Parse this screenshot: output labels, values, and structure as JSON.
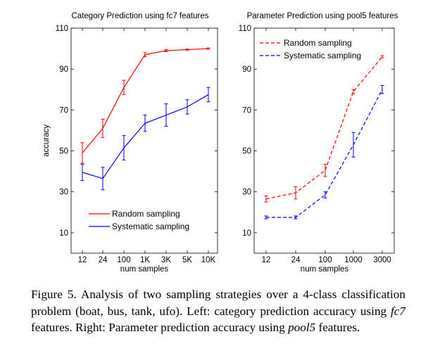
{
  "chart_data": [
    {
      "type": "line",
      "title": "Category Prediction using fc7 features",
      "xlabel": "num samples",
      "ylabel": "accuracy",
      "categories": [
        "12",
        "24",
        "100",
        "1K",
        "3K",
        "5K",
        "10K"
      ],
      "ylim": [
        0,
        110
      ],
      "yticks": [
        10,
        30,
        50,
        70,
        90,
        110
      ],
      "grid": false,
      "legend_position": "bottom",
      "series": [
        {
          "name": "Random sampling",
          "color": "#ff0000",
          "dash": "solid",
          "values": [
            49,
            61,
            81,
            97,
            99,
            99.5,
            100
          ],
          "error": [
            5,
            4.5,
            3.5,
            1,
            0.5,
            0.3,
            0.3
          ]
        },
        {
          "name": "Systematic sampling",
          "color": "#0000ff",
          "dash": "solid",
          "values": [
            39.5,
            36.5,
            51.5,
            63.5,
            67.5,
            71.5,
            77.5
          ],
          "error": [
            4,
            5.5,
            6,
            4,
            5.5,
            3.5,
            3.5
          ]
        }
      ]
    },
    {
      "type": "line",
      "title": "Parameter Prediction using pool5 features",
      "xlabel": "num samples",
      "ylabel": "",
      "categories": [
        "12",
        "24",
        "100",
        "1000",
        "3000"
      ],
      "ylim": [
        0,
        110
      ],
      "yticks": [
        10,
        30,
        50,
        70,
        90,
        110
      ],
      "grid": false,
      "legend_position": "top-left",
      "series": [
        {
          "name": "Random sampling",
          "color": "#ff0000",
          "dash": "dashed",
          "values": [
            26.5,
            29.5,
            40.5,
            79,
            96
          ],
          "error": [
            1.5,
            3,
            3,
            1,
            0.5
          ]
        },
        {
          "name": "Systematic sampling",
          "color": "#0000ff",
          "dash": "dashed",
          "values": [
            17.5,
            17.5,
            28.5,
            53,
            80
          ],
          "error": [
            0.7,
            0.7,
            1.5,
            6,
            2
          ]
        }
      ]
    }
  ],
  "caption": {
    "label": "Figure 5.",
    "part1": " Analysis of two sampling strategies over a 4-class classification problem (boat, bus, tank, ufo). Left: category prediction accuracy using ",
    "em1": "fc7",
    "part2": " features. Right: Parameter prediction accuracy using ",
    "em2": "pool5",
    "part3": " features."
  }
}
